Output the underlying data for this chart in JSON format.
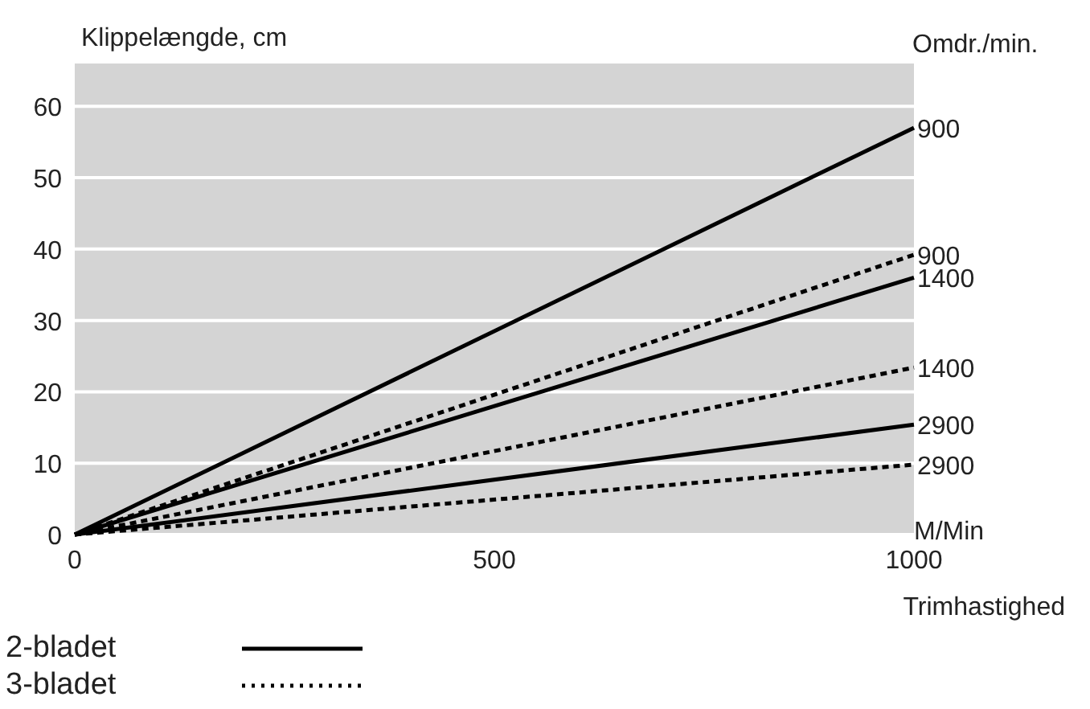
{
  "chart_data": {
    "type": "line",
    "ylabel": "Klippelængde, cm",
    "xlabel": "Trimhastighed",
    "annotations": [
      "M/Min",
      "Omdr./min.",
      "2-bladet",
      "3-bladet"
    ],
    "x": [
      0,
      1000
    ],
    "xlim": [
      0,
      1000
    ],
    "ylim": [
      0,
      66
    ],
    "xticks": [
      0,
      500,
      1000
    ],
    "yticks": [
      0,
      10,
      20,
      30,
      40,
      50,
      60
    ],
    "grid": "y",
    "marker": "none",
    "series": [
      {
        "name": "900",
        "color": "#000000",
        "line_style": "solid",
        "values": [
          0,
          57
        ]
      },
      {
        "name": "900",
        "color": "#000000",
        "line_style": "dashed",
        "values": [
          0,
          39.2
        ]
      },
      {
        "name": "1400",
        "color": "#000000",
        "line_style": "solid",
        "values": [
          0,
          36
        ]
      },
      {
        "name": "1400",
        "color": "#000000",
        "line_style": "dashed",
        "values": [
          0,
          23.4
        ]
      },
      {
        "name": "2900",
        "color": "#000000",
        "line_style": "solid",
        "values": [
          0,
          15.4
        ]
      },
      {
        "name": "2900",
        "color": "#000000",
        "line_style": "dashed",
        "values": [
          0,
          9.8
        ]
      }
    ]
  }
}
